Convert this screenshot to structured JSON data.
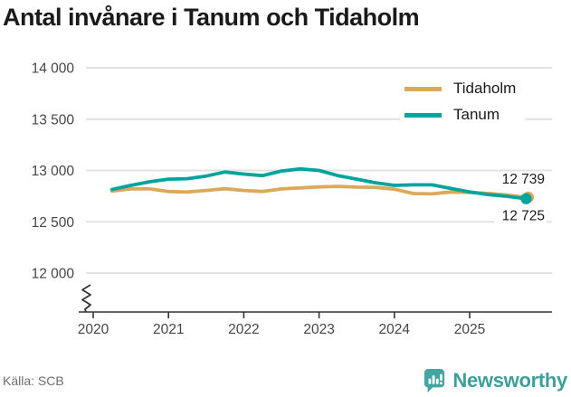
{
  "title": "Antal invånare i Tanum och Tidaholm",
  "source_label": "Källa: SCB",
  "brand": {
    "name": "Newsworthy",
    "color": "#3f9e99"
  },
  "colors": {
    "text": "#1a1a1a",
    "axis": "#333333",
    "tick_label": "#454545",
    "grid": "#e2e2e2",
    "tidaholm": "#dca95b",
    "tanum": "#00a49c"
  },
  "chart_data": {
    "type": "line",
    "title": "Antal invånare i Tanum och Tidaholm",
    "xlabel": "",
    "ylabel": "",
    "ylim": [
      12000,
      14000
    ],
    "axis_break": true,
    "grid": true,
    "legend_position": "top-right",
    "y_ticks": [
      {
        "value": 14000,
        "label": "14 000"
      },
      {
        "value": 13500,
        "label": "13 500"
      },
      {
        "value": 13000,
        "label": "13 000"
      },
      {
        "value": 12500,
        "label": "12 500"
      },
      {
        "value": 12000,
        "label": "12 000"
      }
    ],
    "x_ticks": [
      {
        "value": 2020,
        "label": "2020"
      },
      {
        "value": 2021,
        "label": "2021"
      },
      {
        "value": 2022,
        "label": "2022"
      },
      {
        "value": 2023,
        "label": "2023"
      },
      {
        "value": 2024,
        "label": "2024"
      },
      {
        "value": 2025,
        "label": "2025"
      }
    ],
    "series": [
      {
        "name": "Tidaholm",
        "color": "#dca95b",
        "end_label": "12 739",
        "end_value": 12739,
        "points": [
          [
            2020.25,
            12798
          ],
          [
            2020.5,
            12820
          ],
          [
            2020.75,
            12820
          ],
          [
            2021.0,
            12795
          ],
          [
            2021.25,
            12790
          ],
          [
            2021.5,
            12805
          ],
          [
            2021.75,
            12822
          ],
          [
            2022.0,
            12805
          ],
          [
            2022.25,
            12796
          ],
          [
            2022.5,
            12820
          ],
          [
            2022.75,
            12830
          ],
          [
            2023.0,
            12840
          ],
          [
            2023.25,
            12845
          ],
          [
            2023.5,
            12838
          ],
          [
            2023.75,
            12835
          ],
          [
            2024.0,
            12818
          ],
          [
            2024.25,
            12775
          ],
          [
            2024.5,
            12772
          ],
          [
            2024.75,
            12790
          ],
          [
            2025.0,
            12786
          ],
          [
            2025.25,
            12776
          ],
          [
            2025.5,
            12760
          ],
          [
            2025.75,
            12739
          ]
        ]
      },
      {
        "name": "Tanum",
        "color": "#00a49c",
        "end_label": "12 725",
        "end_value": 12725,
        "points": [
          [
            2020.25,
            12815
          ],
          [
            2020.5,
            12855
          ],
          [
            2020.75,
            12890
          ],
          [
            2021.0,
            12915
          ],
          [
            2021.25,
            12920
          ],
          [
            2021.5,
            12945
          ],
          [
            2021.75,
            12985
          ],
          [
            2022.0,
            12965
          ],
          [
            2022.25,
            12950
          ],
          [
            2022.5,
            12995
          ],
          [
            2022.75,
            13015
          ],
          [
            2023.0,
            13000
          ],
          [
            2023.25,
            12950
          ],
          [
            2023.5,
            12915
          ],
          [
            2023.75,
            12880
          ],
          [
            2024.0,
            12855
          ],
          [
            2024.25,
            12860
          ],
          [
            2024.5,
            12860
          ],
          [
            2024.75,
            12825
          ],
          [
            2025.0,
            12790
          ],
          [
            2025.25,
            12765
          ],
          [
            2025.5,
            12748
          ],
          [
            2025.75,
            12725
          ]
        ]
      }
    ]
  }
}
